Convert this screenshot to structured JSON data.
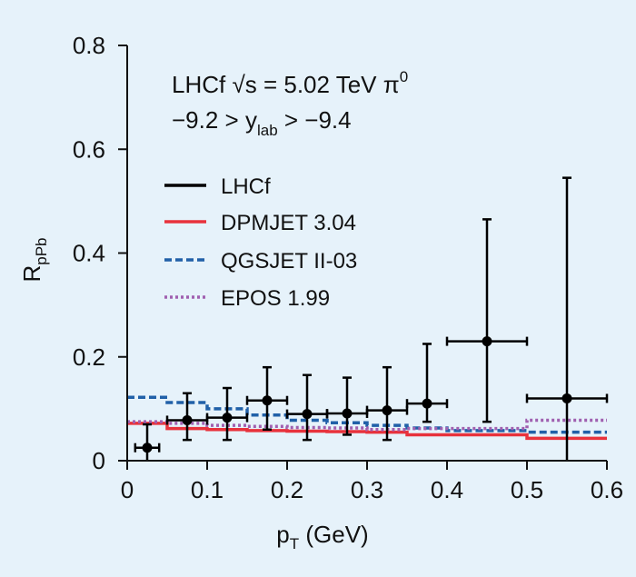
{
  "chart_data": {
    "type": "scatter",
    "xlabel_main": "p",
    "xlabel_sub": "T",
    "xlabel_unit": " (GeV)",
    "ylabel_main": "R",
    "ylabel_sub": "pPb",
    "xlim": [
      0,
      0.6
    ],
    "ylim": [
      0,
      0.8
    ],
    "x_ticks": [
      0,
      0.1,
      0.2,
      0.3,
      0.4,
      0.5,
      0.6
    ],
    "x_tick_labels": [
      "0",
      "0.1",
      "0.2",
      "0.3",
      "0.4",
      "0.5",
      "0.6"
    ],
    "y_ticks": [
      0,
      0.2,
      0.4,
      0.6,
      0.8
    ],
    "y_tick_labels": [
      "0",
      "0.2",
      "0.4",
      "0.6",
      "0.8"
    ],
    "annotation": {
      "line1_pre": "LHCf √s = 5.02 TeV π",
      "line1_sup": "0",
      "line2_pre": "−9.2 > y",
      "line2_sub": "lab",
      "line2_post": " > −9.4"
    },
    "legend_position": "upper-left",
    "series": [
      {
        "name": "LHCf",
        "kind": "points",
        "color": "#000000",
        "points": [
          {
            "x": 0.025,
            "xerr": 0.015,
            "y": 0.025,
            "ylo": 0.0,
            "yhi": 0.07
          },
          {
            "x": 0.075,
            "xerr": 0.025,
            "y": 0.078,
            "ylo": 0.04,
            "yhi": 0.13
          },
          {
            "x": 0.125,
            "xerr": 0.025,
            "y": 0.083,
            "ylo": 0.04,
            "yhi": 0.14
          },
          {
            "x": 0.175,
            "xerr": 0.025,
            "y": 0.116,
            "ylo": 0.06,
            "yhi": 0.18
          },
          {
            "x": 0.225,
            "xerr": 0.025,
            "y": 0.09,
            "ylo": 0.04,
            "yhi": 0.165
          },
          {
            "x": 0.275,
            "xerr": 0.025,
            "y": 0.091,
            "ylo": 0.05,
            "yhi": 0.16
          },
          {
            "x": 0.325,
            "xerr": 0.025,
            "y": 0.097,
            "ylo": 0.04,
            "yhi": 0.18
          },
          {
            "x": 0.375,
            "xerr": 0.025,
            "y": 0.11,
            "ylo": 0.075,
            "yhi": 0.225
          },
          {
            "x": 0.45,
            "xerr": 0.05,
            "y": 0.23,
            "ylo": 0.075,
            "yhi": 0.465
          },
          {
            "x": 0.55,
            "xerr": 0.05,
            "y": 0.12,
            "ylo": 0.0,
            "yhi": 0.545
          }
        ]
      },
      {
        "name": "DPMJET 3.04",
        "kind": "step",
        "color": "#e8323c",
        "style": "solid",
        "edges": [
          0,
          0.05,
          0.1,
          0.15,
          0.2,
          0.25,
          0.3,
          0.35,
          0.4,
          0.5,
          0.6
        ],
        "values": [
          0.072,
          0.062,
          0.06,
          0.058,
          0.057,
          0.056,
          0.055,
          0.05,
          0.05,
          0.043
        ]
      },
      {
        "name": "QGSJET II-03",
        "kind": "step",
        "color": "#2060a8",
        "style": "dashed",
        "edges": [
          0,
          0.05,
          0.1,
          0.15,
          0.2,
          0.25,
          0.3,
          0.35,
          0.4,
          0.5,
          0.6
        ],
        "values": [
          0.122,
          0.112,
          0.1,
          0.088,
          0.078,
          0.073,
          0.068,
          0.063,
          0.058,
          0.055
        ]
      },
      {
        "name": "EPOS 1.99",
        "kind": "step",
        "color": "#a060b0",
        "style": "dotted",
        "edges": [
          0,
          0.05,
          0.1,
          0.15,
          0.2,
          0.25,
          0.3,
          0.35,
          0.4,
          0.5,
          0.6
        ],
        "values": [
          0.075,
          0.072,
          0.068,
          0.066,
          0.064,
          0.063,
          0.06,
          0.062,
          0.062,
          0.078
        ]
      }
    ]
  }
}
